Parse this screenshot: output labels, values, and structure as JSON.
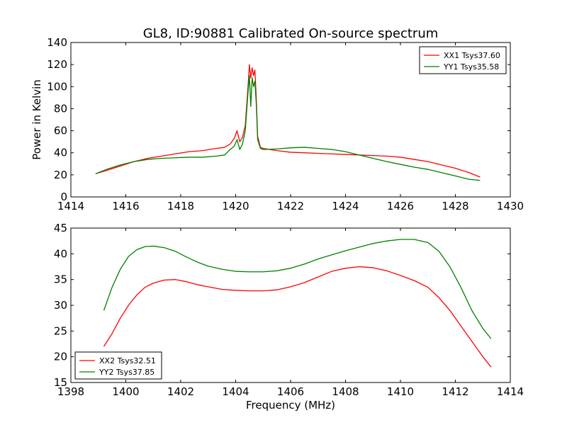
{
  "chart_data": [
    {
      "type": "line",
      "title": "GL8, ID:90881 Calibrated On-source spectrum",
      "xlabel": "",
      "ylabel": "Power in Kelvin",
      "xlim": [
        1414,
        1430
      ],
      "ylim": [
        0,
        140
      ],
      "xticks": [
        "1414",
        "1416",
        "1418",
        "1420",
        "1422",
        "1424",
        "1426",
        "1428",
        "1430"
      ],
      "yticks": [
        "0",
        "20",
        "40",
        "60",
        "80",
        "100",
        "120",
        "140"
      ],
      "grid": false,
      "legend_position": "upper right",
      "series": [
        {
          "name": "XX1 Tsys37.60",
          "color": "#ff0000",
          "x": [
            1414.9,
            1415.3,
            1415.8,
            1416.3,
            1416.8,
            1417.3,
            1417.8,
            1418.3,
            1418.8,
            1419.3,
            1419.6,
            1419.8,
            1419.95,
            1420.05,
            1420.15,
            1420.25,
            1420.35,
            1420.45,
            1420.5,
            1420.55,
            1420.6,
            1420.65,
            1420.7,
            1420.75,
            1420.8,
            1420.9,
            1421.0,
            1421.5,
            1422.0,
            1422.5,
            1423.0,
            1423.5,
            1424.0,
            1424.5,
            1425.0,
            1425.5,
            1426.0,
            1426.5,
            1427.0,
            1427.5,
            1428.0,
            1428.5,
            1428.9
          ],
          "y": [
            21,
            24,
            28,
            32,
            35,
            37,
            39,
            41,
            42,
            44,
            45,
            48,
            53,
            60,
            50,
            54,
            65,
            100,
            120,
            108,
            117,
            110,
            115,
            90,
            55,
            45,
            44,
            42,
            40.5,
            40,
            39.5,
            39,
            38.5,
            38,
            37.5,
            37,
            36,
            34,
            32,
            29,
            26,
            22,
            18
          ]
        },
        {
          "name": "YY1 Tsys35.58",
          "color": "#008000",
          "x": [
            1414.9,
            1415.3,
            1415.8,
            1416.3,
            1416.8,
            1417.3,
            1417.8,
            1418.3,
            1418.8,
            1419.3,
            1419.6,
            1419.8,
            1419.95,
            1420.05,
            1420.15,
            1420.25,
            1420.35,
            1420.45,
            1420.5,
            1420.55,
            1420.6,
            1420.65,
            1420.7,
            1420.75,
            1420.8,
            1420.9,
            1421.0,
            1421.5,
            1422.0,
            1422.5,
            1423.0,
            1423.5,
            1424.0,
            1424.5,
            1425.0,
            1425.5,
            1426.0,
            1426.5,
            1427.0,
            1427.5,
            1428.0,
            1428.5,
            1428.9
          ],
          "y": [
            21,
            25,
            29,
            32,
            34,
            35,
            35.5,
            36,
            36,
            37,
            38,
            43,
            46,
            52,
            43,
            48,
            60,
            95,
            110,
            82,
            108,
            100,
            105,
            85,
            52,
            44,
            43,
            43.5,
            44.5,
            45,
            44,
            43,
            41,
            38,
            35,
            32,
            29.5,
            27,
            25,
            22,
            19,
            16,
            15
          ]
        }
      ]
    },
    {
      "type": "line",
      "title": "",
      "xlabel": "Frequency (MHz)",
      "ylabel": "",
      "xlim": [
        1398,
        1414
      ],
      "ylim": [
        15,
        45
      ],
      "xticks": [
        "1398",
        "1400",
        "1402",
        "1404",
        "1406",
        "1408",
        "1410",
        "1412",
        "1414"
      ],
      "yticks": [
        "15",
        "20",
        "25",
        "30",
        "35",
        "40",
        "45"
      ],
      "grid": false,
      "legend_position": "lower left",
      "series": [
        {
          "name": "XX2 Tsys32.51",
          "color": "#ff0000",
          "x": [
            1399.2,
            1399.5,
            1399.8,
            1400.1,
            1400.4,
            1400.7,
            1401.0,
            1401.4,
            1401.8,
            1402.2,
            1402.6,
            1403.0,
            1403.5,
            1404.0,
            1404.5,
            1405.0,
            1405.5,
            1406.0,
            1406.5,
            1407.0,
            1407.5,
            1408.0,
            1408.5,
            1409.0,
            1409.5,
            1410.0,
            1410.5,
            1411.0,
            1411.4,
            1411.8,
            1412.2,
            1412.6,
            1413.0,
            1413.3
          ],
          "y": [
            22,
            24.5,
            27.5,
            30,
            32,
            33.5,
            34.3,
            34.9,
            35,
            34.6,
            34,
            33.6,
            33.1,
            32.9,
            32.8,
            32.8,
            33,
            33.6,
            34.4,
            35.5,
            36.6,
            37.2,
            37.5,
            37.3,
            36.7,
            35.8,
            34.8,
            33.5,
            31.5,
            29,
            26,
            23,
            20,
            18
          ]
        },
        {
          "name": "YY2 Tsys37.85",
          "color": "#008000",
          "x": [
            1399.2,
            1399.5,
            1399.8,
            1400.1,
            1400.4,
            1400.7,
            1401.0,
            1401.4,
            1401.8,
            1402.2,
            1402.6,
            1403.0,
            1403.5,
            1404.0,
            1404.5,
            1405.0,
            1405.5,
            1406.0,
            1406.5,
            1407.0,
            1407.5,
            1408.0,
            1408.5,
            1409.0,
            1409.5,
            1410.0,
            1410.5,
            1411.0,
            1411.4,
            1411.8,
            1412.2,
            1412.6,
            1413.0,
            1413.3
          ],
          "y": [
            29,
            33.5,
            37,
            39.5,
            40.8,
            41.4,
            41.5,
            41.2,
            40.5,
            39.4,
            38.4,
            37.6,
            37,
            36.6,
            36.5,
            36.5,
            36.7,
            37.2,
            38,
            39,
            39.8,
            40.6,
            41.3,
            42,
            42.5,
            42.8,
            42.8,
            42.2,
            40.5,
            37.5,
            33.5,
            29,
            25.5,
            23.5
          ]
        }
      ]
    }
  ]
}
